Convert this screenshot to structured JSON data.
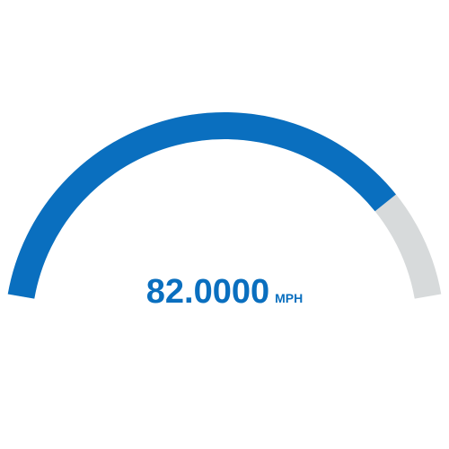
{
  "chart_data": {
    "type": "gauge",
    "value": 82,
    "value_text": "82.0000",
    "unit": "MPH",
    "range": [
      0,
      100
    ],
    "colors": {
      "fill": "#0a6fbf",
      "track": "#d7dadb",
      "text": "#0a6fbf"
    }
  }
}
